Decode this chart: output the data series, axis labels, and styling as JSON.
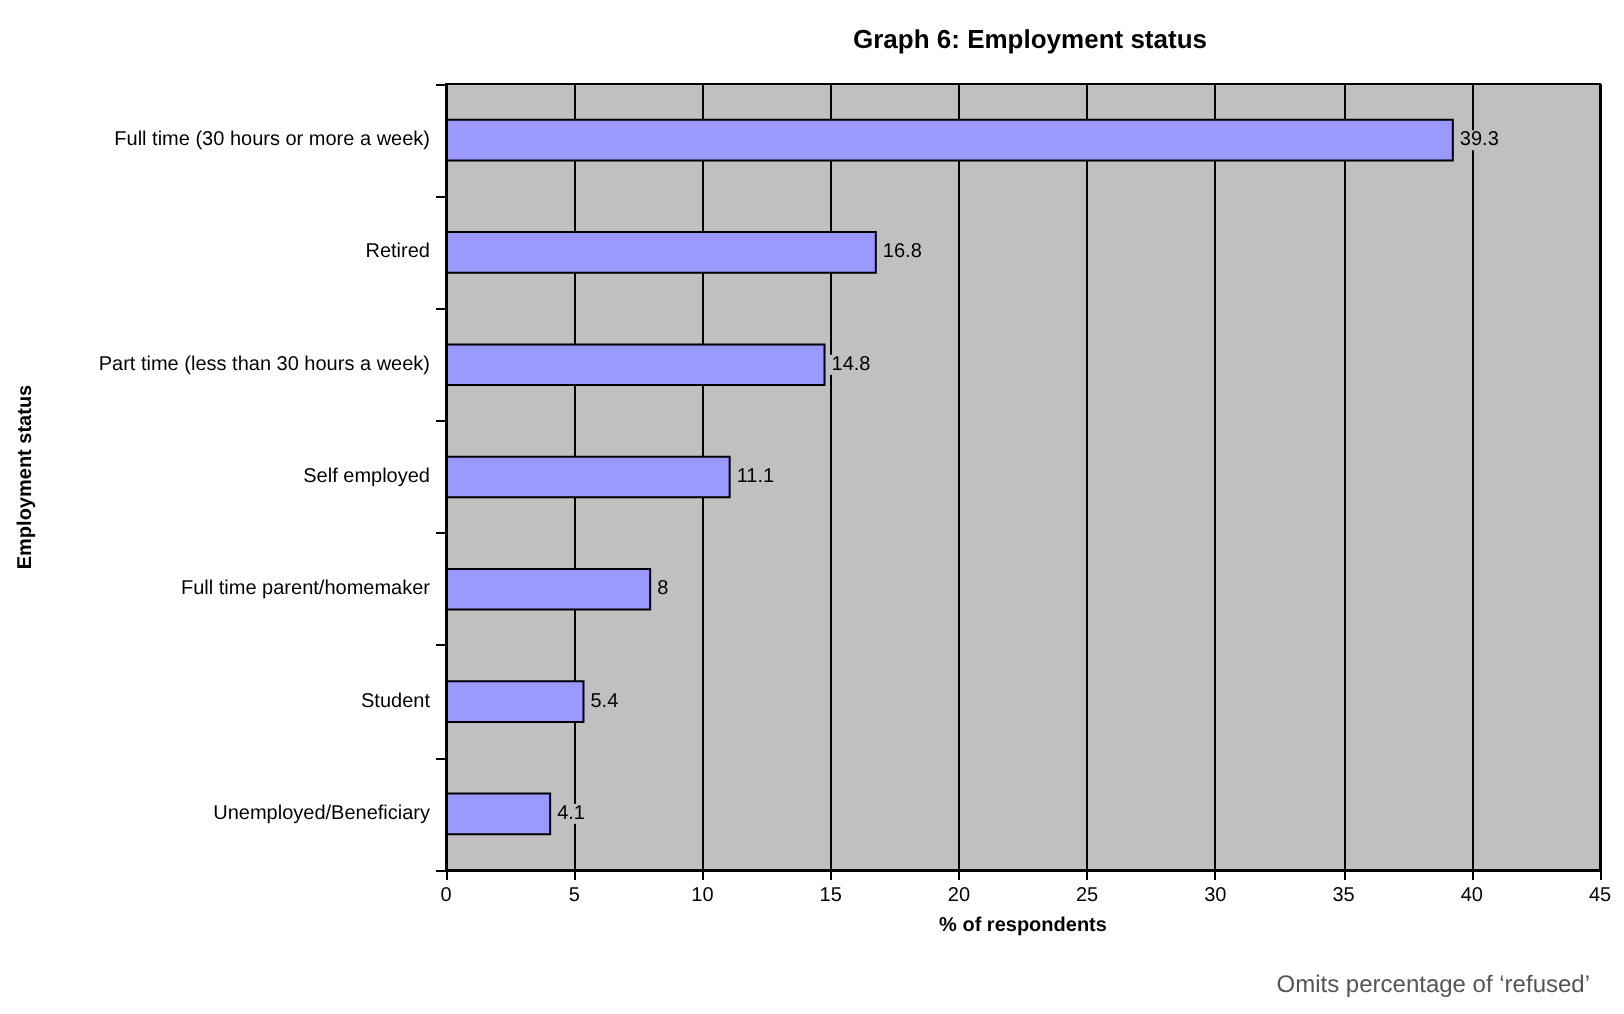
{
  "chart_data": {
    "type": "bar",
    "orientation": "horizontal",
    "title": "Graph 6: Employment status",
    "xlabel": "% of respondents",
    "ylabel": "Employment status",
    "categories": [
      "Full time (30 hours or more a week)",
      "Retired",
      "Part time (less than 30 hours a week)",
      "Self employed",
      "Full time parent/homemaker",
      "Student",
      "Unemployed/Beneficiary"
    ],
    "values": [
      39.3,
      16.8,
      14.8,
      11.1,
      8,
      5.4,
      4.1
    ],
    "color": "#9999ff",
    "xlim": [
      0,
      45
    ],
    "xticks": [
      0,
      5,
      10,
      15,
      20,
      25,
      30,
      35,
      40,
      45
    ],
    "grid": "x",
    "data_labels": true,
    "annotations": [
      "Omits percentage of ‘refused’"
    ]
  }
}
